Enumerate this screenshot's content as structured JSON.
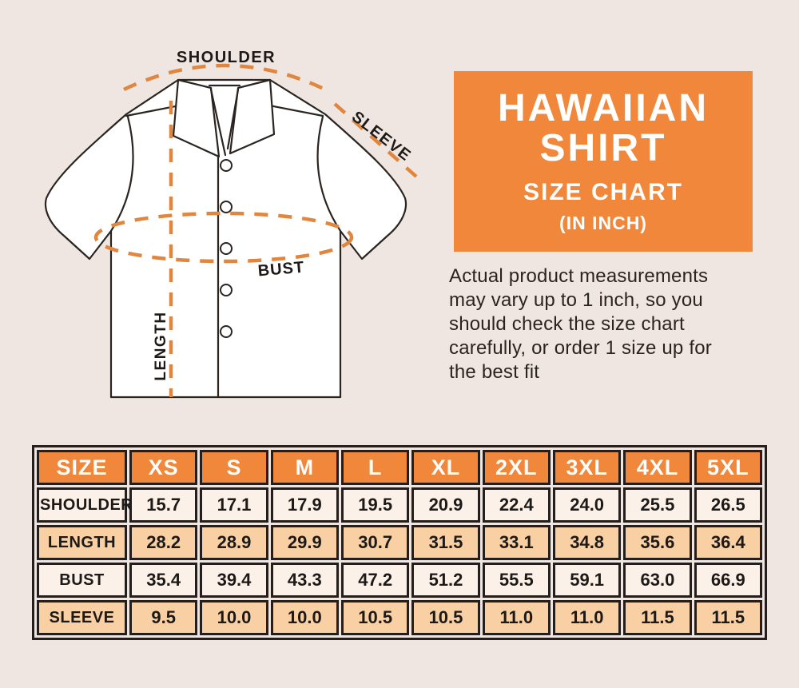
{
  "figure": {
    "labels": {
      "shoulder": "SHOULDER",
      "sleeve": "SLEEVE",
      "bust": "BUST",
      "length": "LENGTH"
    },
    "annotation_color": "#E0863F",
    "outline_color": "#2A2521"
  },
  "title_box": {
    "line1": "HAWAIIAN",
    "line2": "SHIRT",
    "line3": "SIZE CHART",
    "line4": "(IN INCH)",
    "bg_color": "#F1873B",
    "text_color": "#FFFFFF"
  },
  "description_lines": [
    "Actual product measurements",
    "may vary up to 1 inch, so you",
    "should check the size chart",
    "carefully, or order 1 size up for",
    "the best fit"
  ],
  "chart_data": {
    "type": "table",
    "title": "HAWAIIAN SHIRT SIZE CHART (IN INCH)",
    "units": "inch",
    "columns": [
      "SIZE",
      "XS",
      "S",
      "M",
      "L",
      "XL",
      "2XL",
      "3XL",
      "4XL",
      "5XL"
    ],
    "rows": [
      {
        "label": "SHOULDER",
        "values": [
          "15.7",
          "17.1",
          "17.9",
          "19.5",
          "20.9",
          "22.4",
          "24.0",
          "25.5",
          "26.5"
        ]
      },
      {
        "label": "LENGTH",
        "values": [
          "28.2",
          "28.9",
          "29.9",
          "30.7",
          "31.5",
          "33.1",
          "34.8",
          "35.6",
          "36.4"
        ]
      },
      {
        "label": "BUST",
        "values": [
          "35.4",
          "39.4",
          "43.3",
          "47.2",
          "51.2",
          "55.5",
          "59.1",
          "63.0",
          "66.9"
        ]
      },
      {
        "label": "SLEEVE",
        "values": [
          "9.5",
          "10.0",
          "10.0",
          "10.5",
          "10.5",
          "11.0",
          "11.0",
          "11.5",
          "11.5"
        ]
      }
    ],
    "colors": {
      "header_bg": "#F1873B",
      "row_bg_odd": "#FBF1E8",
      "row_bg_even": "#F9CFA4",
      "border": "#241F1D",
      "page_bg": "#EFE6E2"
    }
  }
}
